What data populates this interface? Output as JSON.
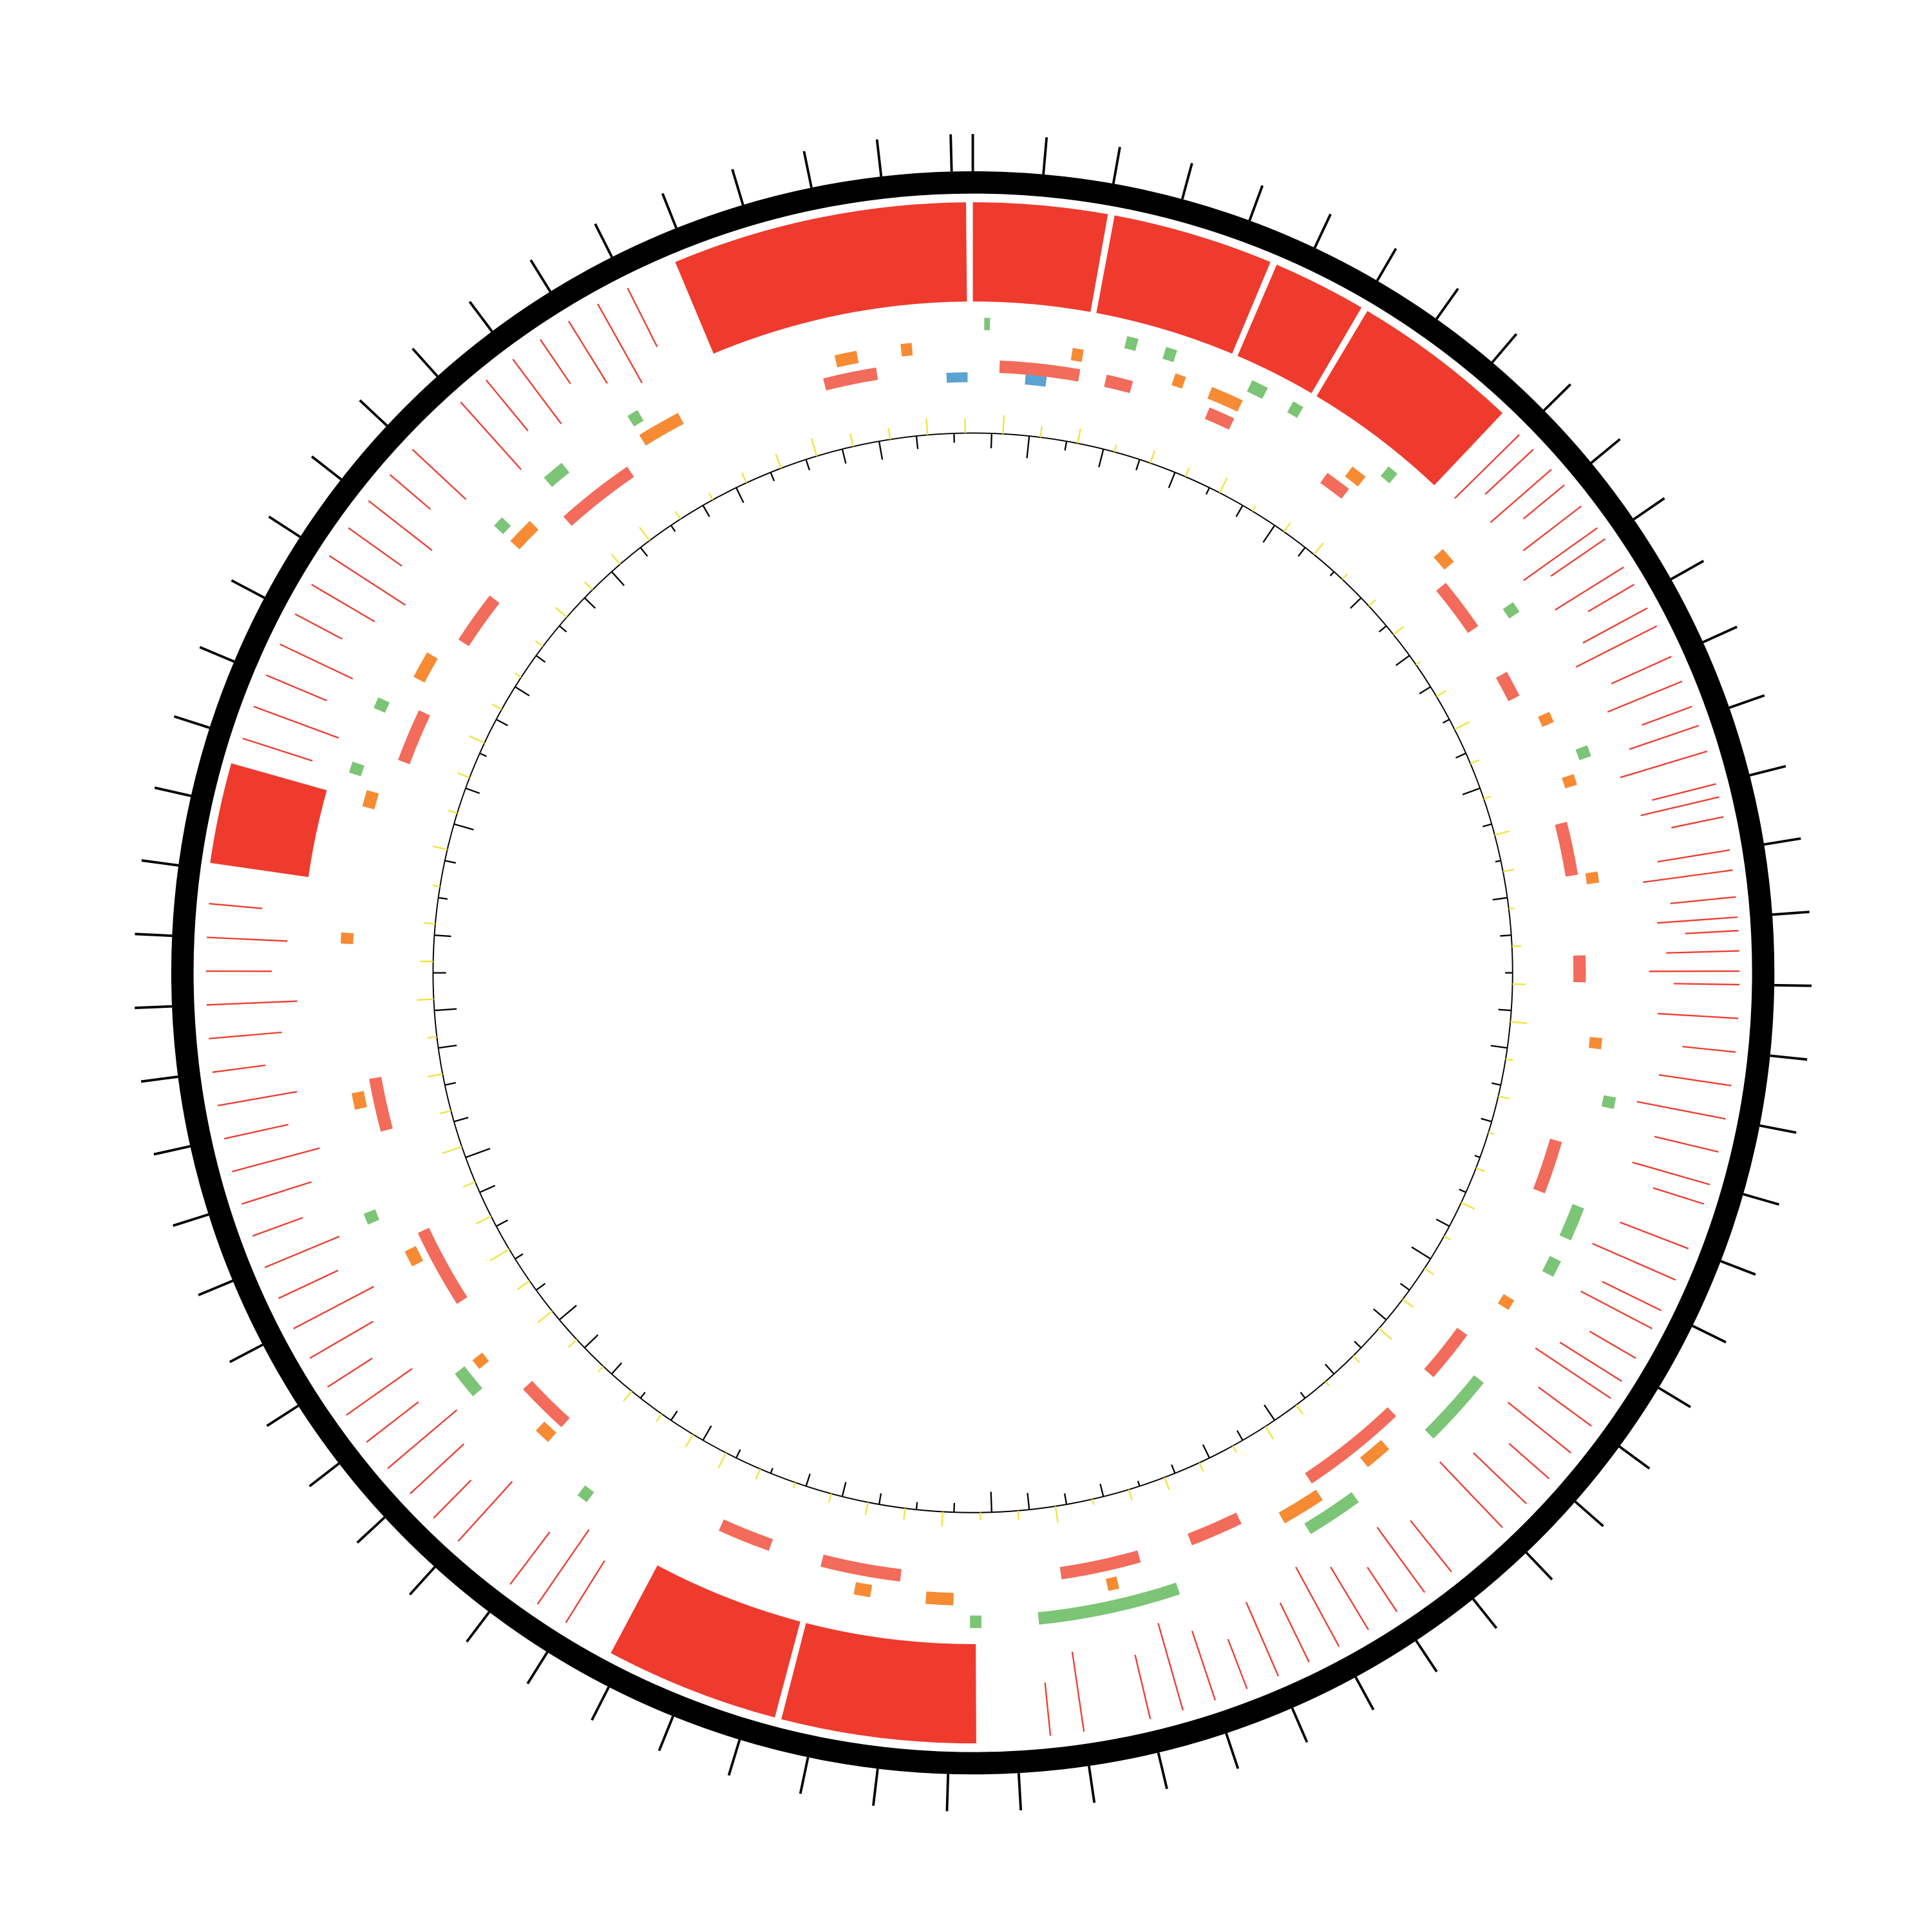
{
  "chart_data": {
    "type": "circos",
    "xlim": [
      0,
      7.13
    ],
    "xticks": [
      0,
      0.1,
      0.2,
      0.3,
      0.4,
      0.5,
      0.6,
      0.7,
      0.8,
      0.9,
      1,
      1.1,
      1.2,
      1.3,
      1.4,
      1.5,
      1.6,
      1.7,
      1.8,
      1.9,
      2,
      2.1,
      2.2,
      2.3,
      2.4,
      2.5,
      2.6,
      2.7,
      2.8,
      2.9,
      3,
      3.1,
      3.2,
      3.3,
      3.4,
      3.5,
      3.6,
      3.7,
      3.8,
      3.9,
      4,
      4.1,
      4.2,
      4.3,
      4.4,
      4.5,
      4.6,
      4.7,
      4.8,
      4.9,
      5,
      5.1,
      5.2,
      5.3,
      5.4,
      5.5,
      5.6,
      5.7,
      5.8,
      5.9,
      6,
      6.1,
      6.2,
      6.3,
      6.4,
      6.5,
      6.6,
      6.7,
      6.8,
      6.9,
      7,
      7.1
    ],
    "tracks": [
      {
        "color": "#ee3b2e",
        "segments": [
          [
            6.68,
            7.12
          ],
          [
            0,
            0.2
          ],
          [
            0.21,
            0.45
          ],
          [
            0.46,
            0.6
          ],
          [
            0.61,
            0.86
          ],
          [
            3.56,
            3.85
          ],
          [
            3.86,
            4.12
          ],
          [
            5.51,
            5.66
          ]
        ]
      },
      {
        "color": "#ee3b2e",
        "positions": [
          0.9,
          0.93,
          0.97,
          1.0,
          1.04,
          1.08,
          1.1,
          1.15,
          1.18,
          1.22,
          1.25,
          1.3,
          1.34,
          1.38,
          1.41,
          1.45,
          1.5,
          1.52,
          1.55,
          1.6,
          1.63,
          1.67,
          1.7,
          1.72,
          1.75,
          1.78,
          1.8,
          1.85,
          1.9,
          1.95,
          2.0,
          2.05,
          2.1,
          2.13,
          2.2,
          2.25,
          2.3,
          2.33,
          2.38,
          2.42,
          2.45,
          2.5,
          2.55,
          2.6,
          2.65,
          2.7,
          2.8,
          2.85,
          2.9,
          2.95,
          3.0,
          3.05,
          3.1,
          3.15,
          3.2,
          3.25,
          3.3,
          3.4,
          3.45,
          4.2,
          4.25,
          4.3,
          4.4,
          4.45,
          4.5,
          4.55,
          4.6,
          4.65,
          4.7,
          4.75,
          4.8,
          4.85,
          4.9,
          4.95,
          5.0,
          5.05,
          5.1,
          5.15,
          5.2,
          5.25,
          5.3,
          5.35,
          5.4,
          5.45,
          5.7,
          5.75,
          5.8,
          5.85,
          5.9,
          5.95,
          6.0,
          6.05,
          6.1,
          6.15,
          6.2,
          6.3,
          6.35,
          6.4,
          6.45,
          6.5,
          6.55,
          6.6
        ]
      },
      {
        "color": "#7cc576",
        "segments": [
          [
            0.02,
            0.03
          ],
          [
            0.27,
            0.29
          ],
          [
            0.34,
            0.36
          ],
          [
            0.5,
            0.53
          ],
          [
            0.58,
            0.6
          ],
          [
            0.78,
            0.8
          ],
          [
            1.1,
            1.12
          ],
          [
            1.38,
            1.4
          ],
          [
            2.0,
            2.02
          ],
          [
            2.2,
            2.26
          ],
          [
            2.3,
            2.33
          ],
          [
            2.55,
            2.68
          ],
          [
            2.85,
            2.95
          ],
          [
            3.2,
            3.45
          ],
          [
            3.55,
            3.57
          ],
          [
            4.28,
            4.3
          ],
          [
            4.55,
            4.6
          ],
          [
            4.9,
            4.92
          ],
          [
            5.7,
            5.72
          ],
          [
            5.82,
            5.84
          ],
          [
            6.2,
            6.22
          ],
          [
            6.32,
            6.36
          ],
          [
            6.5,
            6.52
          ]
        ]
      },
      {
        "color": "#f68b33",
        "segments": [
          [
            0.18,
            0.2
          ],
          [
            0.37,
            0.39
          ],
          [
            0.44,
            0.5
          ],
          [
            0.73,
            0.76
          ],
          [
            0.95,
            0.98
          ],
          [
            1.3,
            1.32
          ],
          [
            1.42,
            1.44
          ],
          [
            1.6,
            1.62
          ],
          [
            1.9,
            1.92
          ],
          [
            2.4,
            2.42
          ],
          [
            2.75,
            2.8
          ],
          [
            2.9,
            2.98
          ],
          [
            3.3,
            3.32
          ],
          [
            3.6,
            3.65
          ],
          [
            3.75,
            3.78
          ],
          [
            4.4,
            4.43
          ],
          [
            4.58,
            4.6
          ],
          [
            4.8,
            4.83
          ],
          [
            5.1,
            5.13
          ],
          [
            5.4,
            5.42
          ],
          [
            5.65,
            5.68
          ],
          [
            5.9,
            5.95
          ],
          [
            6.2,
            6.25
          ],
          [
            6.5,
            6.58
          ],
          [
            6.88,
            6.92
          ],
          [
            7.0,
            7.02
          ]
        ]
      },
      {
        "color": "#f26b5b",
        "segments": [
          [
            0.05,
            0.2
          ],
          [
            0.25,
            0.3
          ],
          [
            0.45,
            0.5
          ],
          [
            0.7,
            0.75
          ],
          [
            1.0,
            1.1
          ],
          [
            1.2,
            1.25
          ],
          [
            1.5,
            1.6
          ],
          [
            1.75,
            1.8
          ],
          [
            2.1,
            2.2
          ],
          [
            2.5,
            2.6
          ],
          [
            2.7,
            2.9
          ],
          [
            3.05,
            3.15
          ],
          [
            3.25,
            3.4
          ],
          [
            3.7,
            3.85
          ],
          [
            3.95,
            4.05
          ],
          [
            4.4,
            4.5
          ],
          [
            4.7,
            4.85
          ],
          [
            5.05,
            5.15
          ],
          [
            5.75,
            5.85
          ],
          [
            6.0,
            6.1
          ],
          [
            6.3,
            6.45
          ],
          [
            6.85,
            6.95
          ]
        ]
      },
      {
        "color": "#5ba3d0",
        "segments": [
          [
            0.1,
            0.14
          ],
          [
            7.08,
            7.12
          ]
        ]
      }
    ],
    "ylim": [
      -20,
      20
    ],
    "histograms": [
      {
        "color": "#000000",
        "values": [
          -8,
          -12,
          -5,
          -10,
          -6,
          -9,
          -4,
          -7,
          -11,
          -6,
          -3,
          -8,
          -5,
          -9,
          -7,
          -4,
          -6,
          -10,
          -5,
          -3,
          -8,
          -6,
          -4,
          -7,
          -9,
          -5,
          -6,
          -3,
          -4,
          -8,
          -12,
          -6,
          -9,
          -5,
          -7,
          -4,
          -10,
          -6,
          -8,
          -5,
          -3,
          -7,
          -6,
          -9,
          -11,
          -5,
          -4,
          -6,
          -8,
          -7,
          -3,
          -5,
          -9,
          -6,
          -4,
          -8,
          -10,
          -12,
          -6,
          -5,
          -7,
          -9,
          -14,
          -8,
          -6,
          -10,
          -12,
          -7,
          -9,
          -5,
          -6,
          -11,
          -8,
          -4,
          -7,
          -9,
          -6,
          -5,
          -8,
          -10,
          -6,
          -4,
          -7,
          -9,
          -5,
          -6,
          -8,
          -10,
          -7,
          -5
        ]
      },
      {
        "color": "#f2e23a",
        "values": [
          10,
          6,
          8,
          4,
          7,
          5,
          9,
          3,
          6,
          8,
          4,
          5,
          7,
          3,
          6,
          9,
          5,
          4,
          8,
          6,
          3,
          5,
          7,
          9,
          4,
          6,
          3,
          5,
          8,
          4,
          6,
          7,
          9,
          5,
          3,
          6,
          8,
          4,
          5,
          7,
          6,
          3,
          9,
          5,
          4,
          8,
          6,
          7,
          5,
          3,
          6,
          9,
          8,
          5,
          7,
          4,
          6,
          10,
          8,
          12,
          9,
          7,
          11,
          6,
          8,
          5,
          9,
          7,
          6,
          4,
          8,
          5,
          7,
          9,
          6,
          4,
          5,
          8,
          6,
          7,
          9,
          5,
          4,
          6,
          8,
          10,
          7,
          6,
          9,
          8
        ]
      }
    ]
  }
}
